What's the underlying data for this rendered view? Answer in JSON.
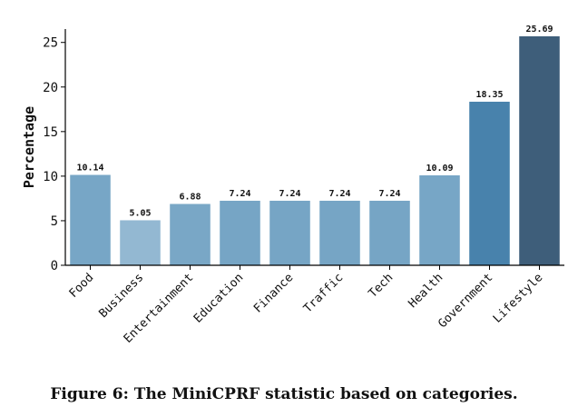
{
  "caption": "Figure 6: The MiniCPRF statistic based on categories.",
  "chart_data": {
    "type": "bar",
    "categories": [
      "Food",
      "Business",
      "Entertainment",
      "Education",
      "Finance",
      "Traffic",
      "Tech",
      "Health",
      "Government",
      "Lifestyle"
    ],
    "values": [
      10.14,
      5.05,
      6.88,
      7.24,
      7.24,
      7.24,
      7.24,
      10.09,
      18.35,
      25.69
    ],
    "value_labels": [
      "10.14",
      "5.05",
      "6.88",
      "7.24",
      "7.24",
      "7.24",
      "7.24",
      "10.09",
      "18.35",
      "25.69"
    ],
    "bar_colors": [
      "#77a6c6",
      "#93b8d2",
      "#79a7c6",
      "#76a5c5",
      "#76a5c5",
      "#76a5c5",
      "#76a5c5",
      "#77a6c6",
      "#4882ac",
      "#3e5e7a"
    ],
    "ylabel": "Percentage",
    "yticks": [
      0,
      5,
      10,
      15,
      20,
      25
    ],
    "ylim": [
      0,
      26.5
    ],
    "grid": false,
    "legend": "none"
  }
}
